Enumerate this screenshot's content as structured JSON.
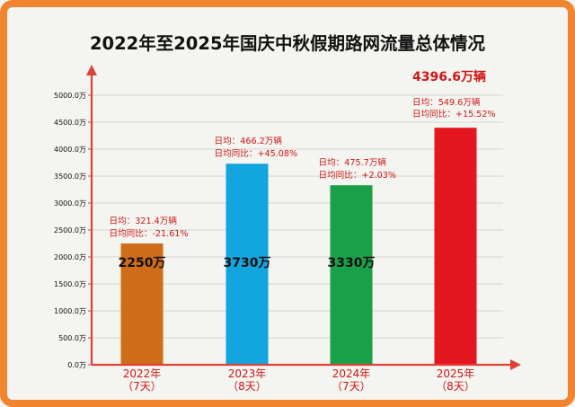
{
  "title": "2022年至2025年国庆中秋假期路网流量总体情况",
  "colors": {
    "frame": "#f1842f",
    "axis": "#e0403a",
    "grid": "#c8c8c8",
    "text_red": "#d11616"
  },
  "chart_data": {
    "type": "bar",
    "categories": [
      "2022年（7天）",
      "2023年（8天）",
      "2024年（7天）",
      "2025年（8天）"
    ],
    "x_labels": [
      {
        "year": "2022年",
        "days": "（7天）"
      },
      {
        "year": "2023年",
        "days": "（8天）"
      },
      {
        "year": "2024年",
        "days": "（7天）"
      },
      {
        "year": "2025年",
        "days": "（8天）"
      }
    ],
    "values": [
      2250,
      3730,
      3330,
      4396.6
    ],
    "value_labels": [
      "2250万",
      "3730万",
      "3330万",
      "4396.6万辆"
    ],
    "bar_colors": [
      "#cf6c19",
      "#13a5dd",
      "#1aa048",
      "#e4161f"
    ],
    "annotations": [
      {
        "daily": "日均：321.4万辆",
        "yoy": "日均同比：-21.61%"
      },
      {
        "daily": "日均：466.2万辆",
        "yoy": "日均同比：+45.08%"
      },
      {
        "daily": "日均：475.7万辆",
        "yoy": "日均同比：+2.03%"
      },
      {
        "daily": "日均：549.6万辆",
        "yoy": "日均同比：+15.52%"
      }
    ],
    "y_ticks": [
      "0.0万",
      "500.0万",
      "1000.0万",
      "1500.0万",
      "2000.0万",
      "2500.0万",
      "3000.0万",
      "3500.0万",
      "4000.0万",
      "4500.0万",
      "5000.0万"
    ],
    "ylim": [
      0,
      5000
    ],
    "grid": true
  }
}
